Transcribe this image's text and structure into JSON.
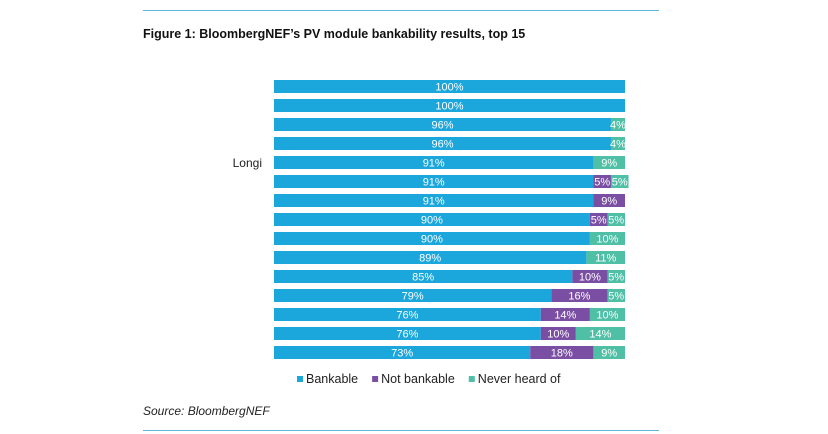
{
  "figure": {
    "title": "Figure 1:  BloombergNEF’s PV module bankability results, top 15",
    "source": "Source: BloombergNEF"
  },
  "chart_data": {
    "type": "bar",
    "orientation": "horizontal",
    "stacked": true,
    "categories": [
      "",
      "",
      "",
      "",
      "Longi",
      "",
      "",
      "",
      "",
      "",
      "",
      "",
      "",
      "",
      ""
    ],
    "series": [
      {
        "name": "Bankable",
        "color": "#1ba6dc",
        "values": [
          100,
          100,
          96,
          96,
          91,
          91,
          91,
          90,
          90,
          89,
          85,
          79,
          76,
          76,
          73
        ]
      },
      {
        "name": "Not bankable",
        "color": "#7a4fa3",
        "values": [
          0,
          0,
          0,
          0,
          0,
          5,
          9,
          5,
          0,
          0,
          10,
          16,
          14,
          10,
          18
        ]
      },
      {
        "name": "Never heard of",
        "color": "#4fbfa5",
        "values": [
          0,
          0,
          4,
          4,
          9,
          5,
          0,
          5,
          10,
          11,
          5,
          5,
          10,
          14,
          9
        ]
      }
    ],
    "value_suffix": "%",
    "xlim": [
      0,
      100
    ],
    "legend": "bottom",
    "grid": false
  }
}
